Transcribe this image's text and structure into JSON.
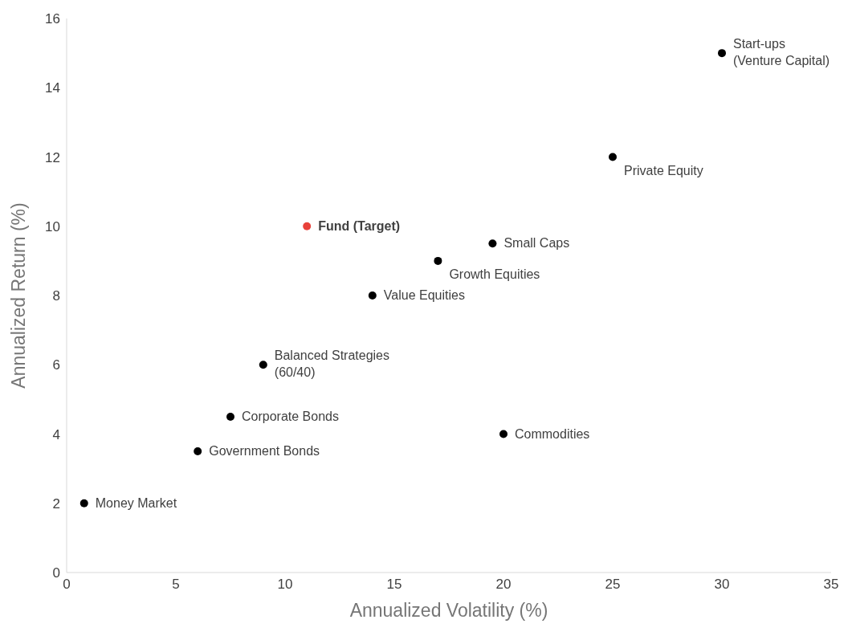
{
  "chart_data": {
    "type": "scatter",
    "xlabel": "Annualized Volatility (%)",
    "ylabel": "Annualized Return (%)",
    "xlim": [
      0,
      35
    ],
    "xticks": [
      0,
      5,
      10,
      15,
      20,
      25,
      30,
      35
    ],
    "ylim": [
      0,
      16
    ],
    "yticks": [
      0,
      2,
      4,
      6,
      8,
      10,
      12,
      14,
      16
    ],
    "grid": false,
    "legend": false,
    "marker": "circle",
    "series": [
      {
        "color": "#000000",
        "x": [
          0.8,
          6,
          7.5,
          9,
          14,
          17,
          19.5,
          20,
          25,
          30
        ],
        "values": [
          2,
          3.5,
          4.5,
          6,
          8,
          9,
          9.5,
          4,
          12,
          15
        ]
      },
      {
        "name": "Fund (Target)",
        "color": "#e8413a",
        "x": [
          11
        ],
        "values": [
          10
        ]
      }
    ],
    "annotations": [
      {
        "text": "Money Market",
        "x": 0.8,
        "y": 2
      },
      {
        "text": "Government Bonds",
        "x": 6,
        "y": 3.5
      },
      {
        "text": "Corporate Bonds",
        "x": 7.5,
        "y": 4.5
      },
      {
        "text": "Balanced Strategies (60/40)",
        "x": 9,
        "y": 6
      },
      {
        "text": "Value Equities",
        "x": 14,
        "y": 8
      },
      {
        "text": "Growth Equities",
        "x": 17,
        "y": 9
      },
      {
        "text": "Small Caps",
        "x": 19.5,
        "y": 9.5
      },
      {
        "text": "Commodities",
        "x": 20,
        "y": 4
      },
      {
        "text": "Private Equity",
        "x": 25,
        "y": 12
      },
      {
        "text": "Start-ups (Venture Capital)",
        "x": 30,
        "y": 15
      }
    ]
  }
}
